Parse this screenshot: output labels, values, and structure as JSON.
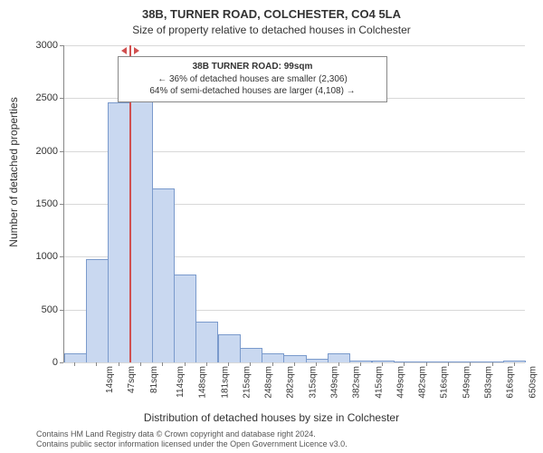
{
  "title": "38B, TURNER ROAD, COLCHESTER, CO4 5LA",
  "subtitle": "Size of property relative to detached houses in Colchester",
  "yaxis_label": "Number of detached properties",
  "xaxis_label": "Distribution of detached houses by size in Colchester",
  "attribution_line1": "Contains HM Land Registry data © Crown copyright and database right 2024.",
  "attribution_line2": "Contains public sector information licensed under the Open Government Licence v3.0.",
  "chart": {
    "type": "histogram",
    "background_color": "#ffffff",
    "grid_color": "#d8d8d8",
    "axis_color": "#888888",
    "bar_fill": "#c9d8f0",
    "bar_stroke": "#7a9acc",
    "ylim": [
      0,
      3000
    ],
    "ytick_step": 500,
    "yticks": [
      0,
      500,
      1000,
      1500,
      2000,
      2500,
      3000
    ],
    "bar_width_ratio": 0.95,
    "bars": [
      {
        "x": 14,
        "value": 80
      },
      {
        "x": 47,
        "value": 970
      },
      {
        "x": 81,
        "value": 2450
      },
      {
        "x": 114,
        "value": 2480
      },
      {
        "x": 148,
        "value": 1640
      },
      {
        "x": 181,
        "value": 820
      },
      {
        "x": 215,
        "value": 380
      },
      {
        "x": 248,
        "value": 260
      },
      {
        "x": 282,
        "value": 130
      },
      {
        "x": 315,
        "value": 80
      },
      {
        "x": 349,
        "value": 60
      },
      {
        "x": 382,
        "value": 30
      },
      {
        "x": 415,
        "value": 80
      },
      {
        "x": 449,
        "value": 10
      },
      {
        "x": 482,
        "value": 6
      },
      {
        "x": 516,
        "value": 4
      },
      {
        "x": 549,
        "value": 3
      },
      {
        "x": 583,
        "value": 4
      },
      {
        "x": 616,
        "value": 2
      },
      {
        "x": 650,
        "value": 2
      },
      {
        "x": 683,
        "value": 6
      }
    ],
    "xtick_unit": "sqm",
    "xtick_fontsize": 10,
    "ytick_fontsize": 11,
    "label_fontsize": 12,
    "title_fontsize": 13
  },
  "marker": {
    "value_sqm": 99,
    "line_color": "#d05050",
    "arrow_color": "#d05050"
  },
  "annotation": {
    "line1": "38B TURNER ROAD: 99sqm",
    "line2": "← 36% of detached houses are smaller (2,306)",
    "line3": "64% of semi-detached houses are larger (4,108) →",
    "border_color": "#888888",
    "background_color": "#ffffff",
    "fontsize": 10
  }
}
